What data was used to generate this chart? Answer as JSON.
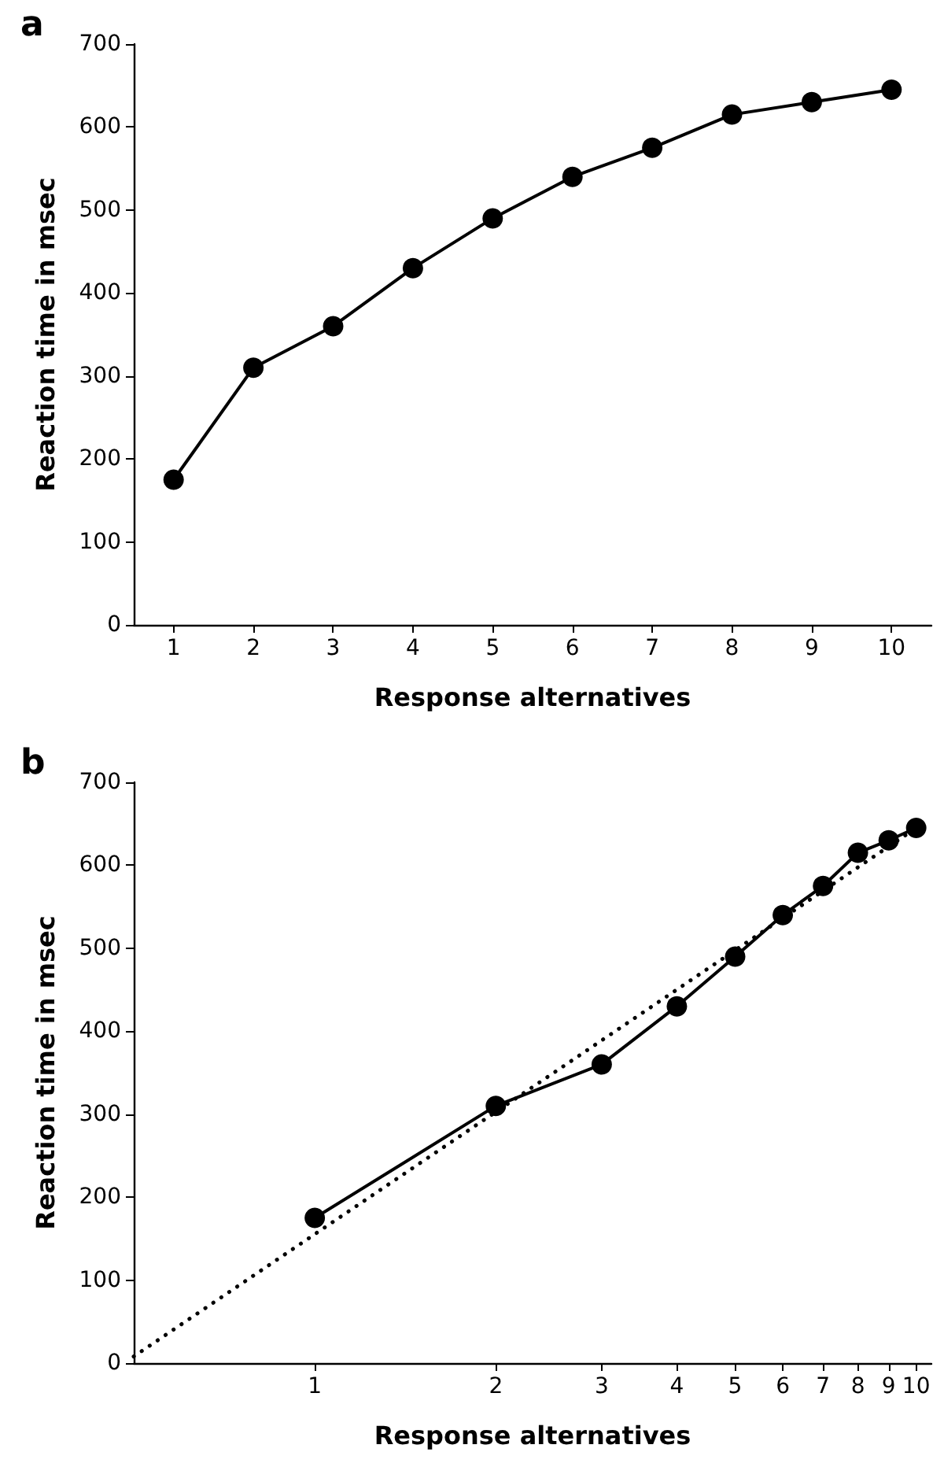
{
  "chart_data": [
    {
      "type": "line",
      "title": "a",
      "xlabel": "Response alternatives",
      "ylabel": "Reaction time in msec",
      "categories": [
        "1",
        "2",
        "3",
        "4",
        "5",
        "6",
        "7",
        "8",
        "9",
        "10"
      ],
      "series": [
        {
          "color": "#000000",
          "values": [
            175,
            310,
            360,
            430,
            490,
            540,
            575,
            615,
            630,
            645
          ]
        }
      ],
      "ylim": [
        0,
        700
      ],
      "yticks": [
        0,
        100,
        200,
        300,
        400,
        500,
        600,
        700
      ],
      "grid": false,
      "marker": "circle",
      "line_style": "solid"
    },
    {
      "type": "line",
      "title": "b",
      "xlabel": "Response alternatives",
      "ylabel": "Reaction time in msec",
      "series": [
        {
          "color": "#000000",
          "x": [
            1,
            2,
            3,
            4,
            5,
            6,
            7,
            8,
            9,
            10
          ],
          "values": [
            175,
            310,
            360,
            430,
            490,
            540,
            575,
            615,
            630,
            645
          ],
          "marker": "circle",
          "line_style": "solid"
        },
        {
          "color": "#000000",
          "x": [
            0.5,
            10
          ],
          "values": [
            8,
            645
          ],
          "marker": "none",
          "line_style": "dotted"
        }
      ],
      "log": "x",
      "xlim": [
        0.5,
        10.6
      ],
      "xticks": [
        1,
        2,
        3,
        4,
        5,
        6,
        7,
        8,
        9,
        10
      ],
      "ylim": [
        0,
        700
      ],
      "yticks": [
        0,
        100,
        200,
        300,
        400,
        500,
        600,
        700
      ],
      "grid": false
    }
  ]
}
